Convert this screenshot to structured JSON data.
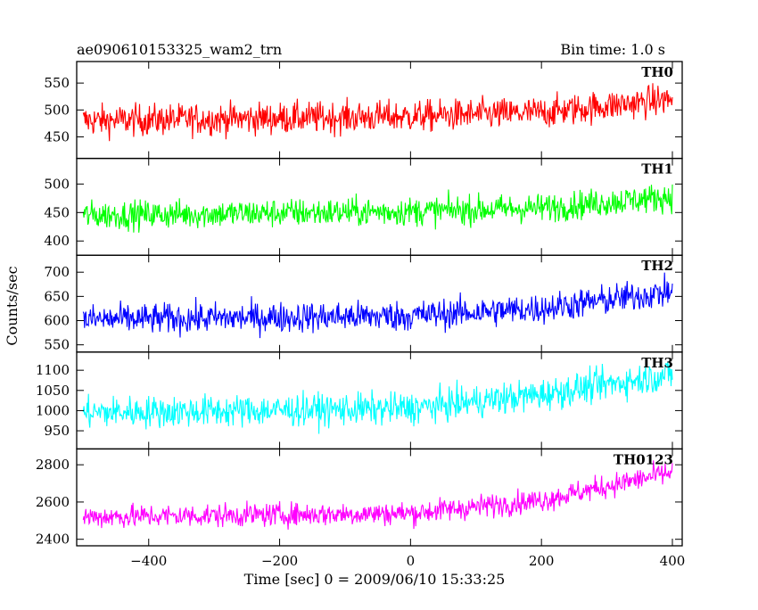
{
  "chart_data": {
    "type": "line",
    "title": "ae090610153325_wam2_trn",
    "subtitle": "Bin time: 1.0 s",
    "xlabel": "Time [sec] 0 = 2009/06/10 15:33:25",
    "ylabel": "Counts/sec",
    "xlim": [
      -510,
      415
    ],
    "x_step": 1.0,
    "xticks": [
      -400,
      -200,
      0,
      200,
      400
    ],
    "xtick_labels": [
      "−400",
      "−200",
      "0",
      "200",
      "400"
    ],
    "grid": false,
    "panels": [
      {
        "name": "TH0",
        "color": "#ff0000",
        "ylim": [
          410,
          590
        ],
        "yticks": [
          450,
          500,
          550
        ],
        "trend": [
          [
            -500,
            480
          ],
          [
            0,
            488
          ],
          [
            200,
            495
          ],
          [
            400,
            520
          ]
        ],
        "noise_amplitude": 28
      },
      {
        "name": "TH1",
        "color": "#00ff00",
        "ylim": [
          375,
          545
        ],
        "yticks": [
          400,
          450,
          500
        ],
        "trend": [
          [
            -500,
            445
          ],
          [
            0,
            452
          ],
          [
            200,
            458
          ],
          [
            400,
            478
          ]
        ],
        "noise_amplitude": 24
      },
      {
        "name": "TH2",
        "color": "#0000ff",
        "ylim": [
          535,
          735
        ],
        "yticks": [
          550,
          600,
          650,
          700
        ],
        "trend": [
          [
            -500,
            602
          ],
          [
            0,
            610
          ],
          [
            200,
            625
          ],
          [
            400,
            660
          ]
        ],
        "noise_amplitude": 30
      },
      {
        "name": "TH3",
        "color": "#00ffff",
        "ylim": [
          905,
          1145
        ],
        "yticks": [
          950,
          1000,
          1050,
          1100
        ],
        "trend": [
          [
            -500,
            995
          ],
          [
            0,
            1005
          ],
          [
            200,
            1040
          ],
          [
            400,
            1090
          ]
        ],
        "noise_amplitude": 38
      },
      {
        "name": "TH0123",
        "color": "#ff00ff",
        "ylim": [
          2365,
          2885
        ],
        "yticks": [
          2400,
          2600,
          2800
        ],
        "trend": [
          [
            -500,
            2520
          ],
          [
            0,
            2540
          ],
          [
            200,
            2610
          ],
          [
            400,
            2760
          ]
        ],
        "noise_amplitude": 60
      }
    ]
  }
}
